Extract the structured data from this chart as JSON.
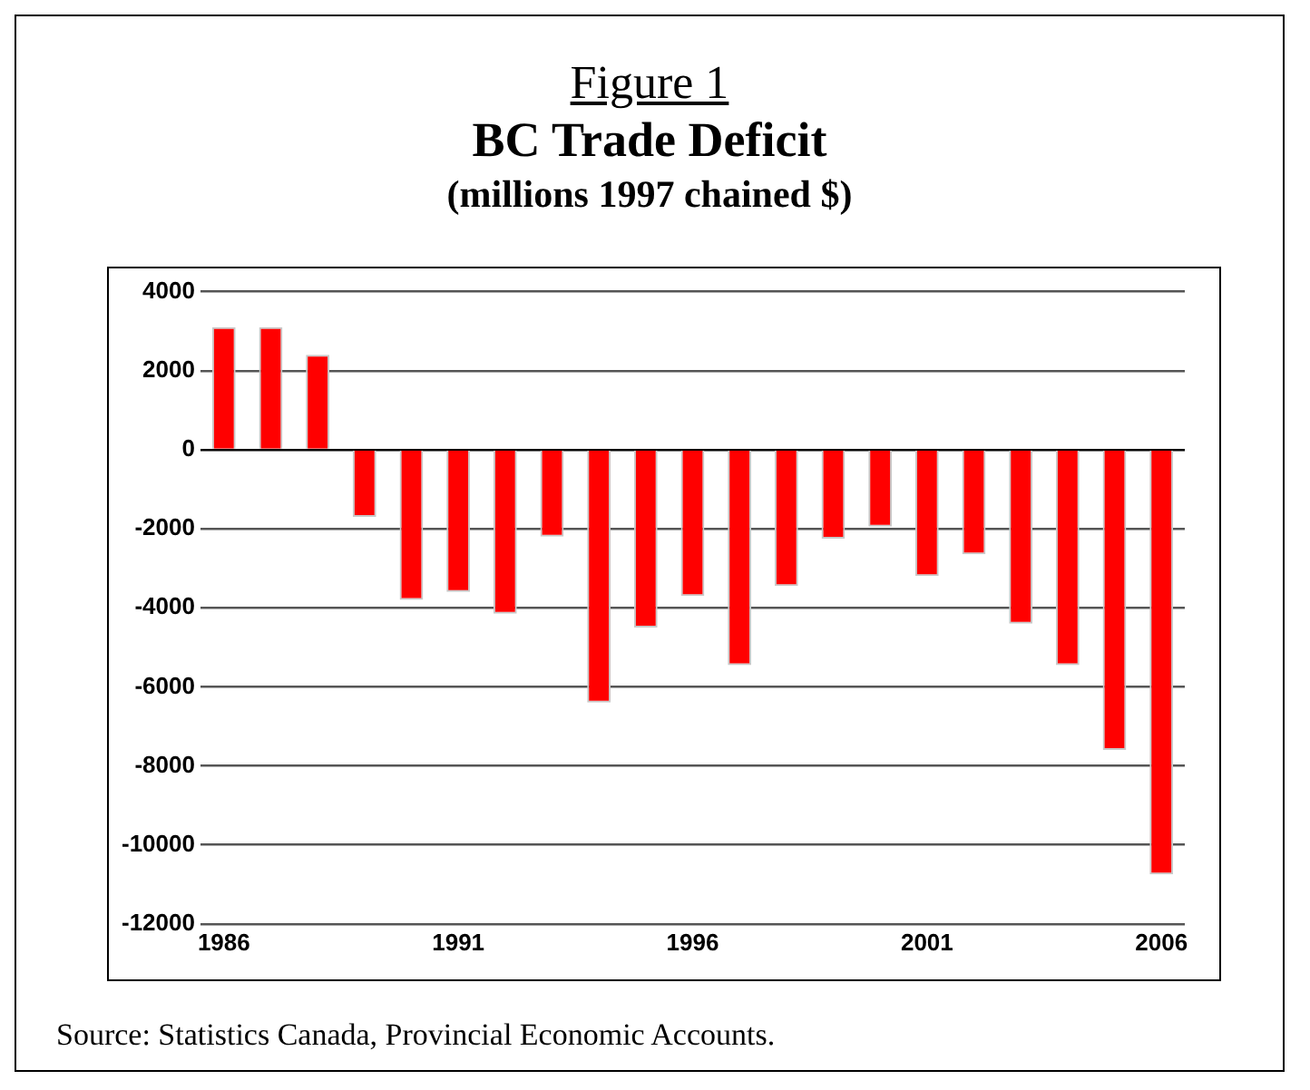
{
  "chart_data": {
    "type": "bar",
    "title": "BC Trade Deficit",
    "subtitle": "(millions 1997 chained $)",
    "annotations": [
      "Figure 1",
      "Source:  Statistics Canada, Provincial Economic Accounts."
    ],
    "categories": [
      "1986",
      null,
      null,
      null,
      null,
      "1991",
      null,
      null,
      null,
      null,
      "1996",
      null,
      null,
      null,
      null,
      "2001",
      null,
      null,
      null,
      null,
      "2006"
    ],
    "values": [
      3100,
      3100,
      2400,
      -1700,
      -3800,
      -3600,
      -4150,
      -2200,
      -6400,
      -4500,
      -3700,
      -5450,
      -3450,
      -2250,
      -1950,
      -3200,
      -2650,
      -4400,
      -5450,
      -7600,
      -10750
    ],
    "color": "#ff0000",
    "ylim": [
      -12000,
      4000
    ],
    "yticks": [
      -12000,
      -10000,
      -8000,
      -6000,
      -4000,
      -2000,
      0,
      2000,
      4000
    ],
    "grid": "y",
    "legend": false
  }
}
